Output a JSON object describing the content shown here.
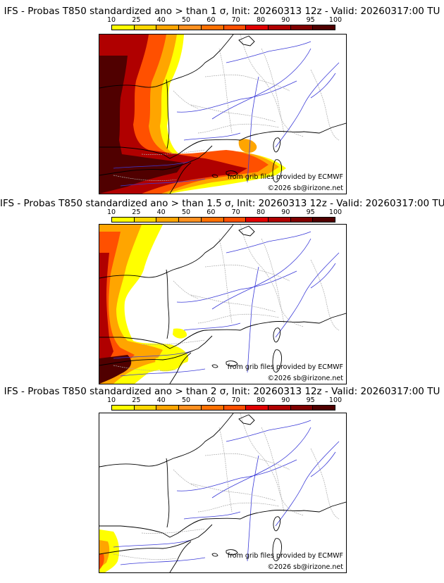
{
  "scale": {
    "labels": [
      "10",
      "25",
      "40",
      "50",
      "60",
      "70",
      "80",
      "90",
      "95",
      "100"
    ],
    "colors": [
      "#ffff00",
      "#ffd700",
      "#ffa500",
      "#ff9020",
      "#ff7000",
      "#ff5000",
      "#e00000",
      "#b00000",
      "#800000",
      "#500000"
    ]
  },
  "panels": [
    {
      "title": "IFS - Probas T850  standardized ano > than 1 σ, Init: 20260313 12z - Valid: 20260317:00 TU",
      "source": "from grib files provided by ECMWF",
      "copyright": "©2026 sb@irizone.net",
      "extent": "wide"
    },
    {
      "title": "IFS - Probas T850  standardized ano > than 1.5 σ, Init: 20260313 12z - Valid: 20260317:00 TU",
      "source": "from grib files provided by ECMWF",
      "copyright": "©2026 sb@irizone.net",
      "extent": "medium"
    },
    {
      "title": "IFS - Probas T850  standardized ano > than 2 σ, Init: 20260313 12z - Valid: 20260317:00 TU",
      "source": "from grib files provided by ECMWF",
      "copyright": "©2026 sb@irizone.net",
      "extent": "small"
    }
  ]
}
